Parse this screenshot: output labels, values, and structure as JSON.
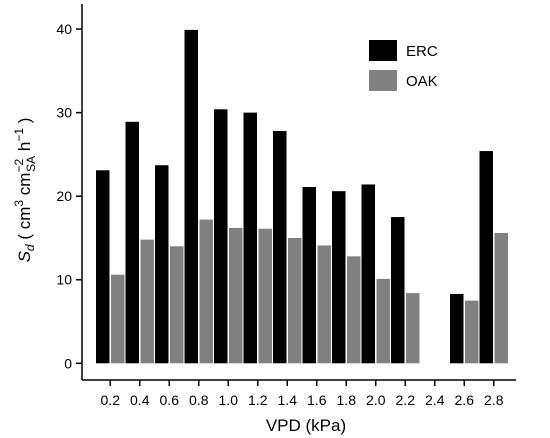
{
  "chart_data": {
    "type": "bar",
    "xlabel": "VPD (kPa)",
    "ylabel": {
      "S": "S",
      "d": "d",
      "open": " ( cm",
      "exp3": "3",
      "cm": " cm",
      "exp_neg2": "−2",
      "sub_sa": "SA",
      "h": " h",
      "exp_neg1": "−1",
      "close": " )"
    },
    "categories": [
      "0.2",
      "0.4",
      "0.6",
      "0.8",
      "1.0",
      "1.2",
      "1.4",
      "1.6",
      "1.8",
      "2.0",
      "2.2",
      "2.4",
      "2.6",
      "2.8"
    ],
    "series": [
      {
        "name": "ERC",
        "color": "#000000",
        "values": [
          23.1,
          28.9,
          23.7,
          39.9,
          30.4,
          30.0,
          27.8,
          21.1,
          20.6,
          21.4,
          17.5,
          null,
          8.3,
          25.4
        ]
      },
      {
        "name": "OAK",
        "color": "#808080",
        "values": [
          10.6,
          14.8,
          14.0,
          17.2,
          16.2,
          16.1,
          15.0,
          14.1,
          12.8,
          10.1,
          8.4,
          null,
          7.5,
          15.6
        ]
      }
    ],
    "ylim": [
      -2,
      43
    ],
    "yticks": [
      "0",
      "10",
      "20",
      "30",
      "40"
    ],
    "legend_position": "top-right",
    "grid": false
  }
}
